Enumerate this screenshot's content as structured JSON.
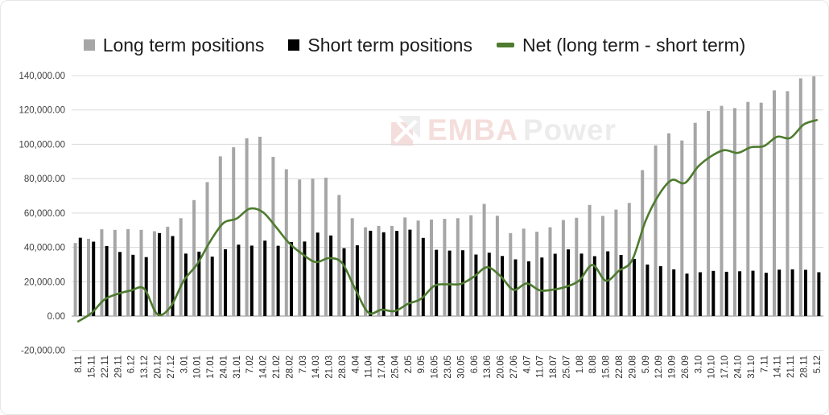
{
  "window": {
    "background": "#ffffff",
    "border_color": "#e6e6e6"
  },
  "legend": {
    "items": [
      {
        "label": "Long term positions",
        "marker": "square",
        "color": "#a6a6a6"
      },
      {
        "label": "Short term positions",
        "marker": "square",
        "color": "#000000"
      },
      {
        "label": "Net (long term - short term)",
        "marker": "dash",
        "color": "#4e7b2f"
      }
    ]
  },
  "watermark": {
    "logo": "emba-logo",
    "text_red": "EMBA",
    "text_gray": "Power",
    "red": "#c0392b",
    "gray": "#8f8f8f"
  },
  "chart_data": {
    "type": "combo",
    "title": "",
    "xlabel": "",
    "ylabel": "",
    "grid": true,
    "legend_position": "top",
    "ylim": [
      -20000,
      140000
    ],
    "ytick_step": 20000,
    "ytick_labels": [
      "140,000.00",
      "120,000.00",
      "100,000.00",
      "80,000.00",
      "60,000.00",
      "40,000.00",
      "20,000.00",
      "0.00",
      "-20,000.00"
    ],
    "categories": [
      "8.11",
      "15.11",
      "22.11",
      "29.11",
      "6.12",
      "13.12",
      "20.12",
      "27.12",
      "3.01",
      "10.01",
      "17.01",
      "24.01",
      "31.01",
      "7.02",
      "14.02",
      "21.02",
      "28.02",
      "7.03",
      "14.03",
      "21.03",
      "28.03",
      "4.04",
      "11.04",
      "17.04",
      "25.04",
      "2.05",
      "9.05",
      "16.05",
      "23.05",
      "30.05",
      "6.06",
      "13.06",
      "20.06",
      "27.06",
      "4.07",
      "11.07",
      "18.07",
      "25.07",
      "1.08",
      "8.08",
      "15.08",
      "22.08",
      "29.08",
      "5.09",
      "12.09",
      "19.09",
      "26.09",
      "3.10",
      "10.10",
      "17.10",
      "24.10",
      "31.10",
      "7.11",
      "14.11",
      "21.11",
      "28.11",
      "5.12"
    ],
    "series": [
      {
        "name": "Long term positions",
        "type": "bar",
        "color": "#a6a6a6",
        "values": [
          42500,
          45000,
          50500,
          50200,
          50600,
          50200,
          49400,
          52000,
          57000,
          67500,
          78000,
          93000,
          98300,
          103500,
          104400,
          92700,
          85500,
          79500,
          80000,
          80600,
          70500,
          57000,
          51700,
          52500,
          52500,
          57400,
          55600,
          56200,
          56600,
          57000,
          58700,
          65300,
          58400,
          48300,
          50900,
          49100,
          51700,
          55900,
          57200,
          64700,
          58300,
          62000,
          65900,
          85000,
          99400,
          106400,
          102200,
          112500,
          119400,
          122400,
          121100,
          124700,
          124200,
          131400,
          130900,
          138400,
          139600
        ]
      },
      {
        "name": "Short term positions",
        "type": "bar",
        "color": "#000000",
        "values": [
          45600,
          43300,
          40800,
          37300,
          35700,
          34300,
          48300,
          46600,
          36400,
          37500,
          34600,
          38900,
          41600,
          41000,
          43900,
          40900,
          43100,
          43400,
          48600,
          46900,
          39500,
          41200,
          49700,
          48800,
          49600,
          50300,
          45500,
          38600,
          38100,
          38300,
          35800,
          36900,
          35000,
          33000,
          31900,
          34100,
          36300,
          38800,
          36400,
          34900,
          37700,
          35600,
          33300,
          30000,
          29100,
          27200,
          24700,
          25500,
          26300,
          25800,
          26100,
          26400,
          25200,
          27000,
          27200,
          26900,
          25500
        ]
      },
      {
        "name": "Net (long term - short term)",
        "type": "line",
        "smooth": true,
        "color": "#4e7b2f",
        "values": [
          -3100,
          1700,
          9700,
          12900,
          14900,
          15900,
          1100,
          5400,
          20600,
          30000,
          43400,
          54100,
          56700,
          62500,
          60500,
          51800,
          42400,
          36100,
          31400,
          33700,
          31000,
          15800,
          2000,
          3700,
          2900,
          7100,
          10100,
          17600,
          18500,
          18700,
          22900,
          28400,
          23400,
          15300,
          19000,
          15000,
          15400,
          17100,
          20800,
          29800,
          20600,
          26400,
          32600,
          55000,
          70300,
          79200,
          77500,
          87000,
          93100,
          96600,
          95000,
          98300,
          99000,
          104400,
          103700,
          111500,
          114100
        ]
      }
    ]
  }
}
